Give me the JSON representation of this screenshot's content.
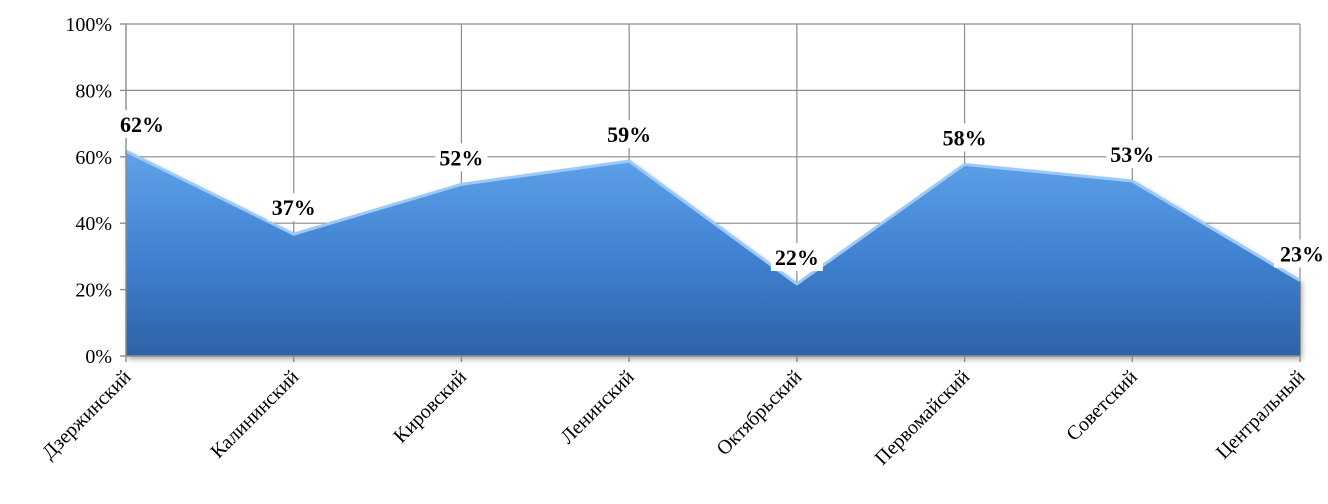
{
  "chart_data": {
    "type": "area",
    "categories": [
      "Дзержинский",
      "Калининский",
      "Кировский",
      "Ленинский",
      "Октябрьский",
      "Первомайский",
      "Советский",
      "Центральный"
    ],
    "values": [
      62,
      37,
      52,
      59,
      22,
      58,
      53,
      23
    ],
    "data_labels": [
      "62%",
      "37%",
      "52%",
      "59%",
      "22%",
      "58%",
      "53%",
      "23%"
    ],
    "y_ticks": [
      "0%",
      "20%",
      "40%",
      "60%",
      "80%",
      "100%"
    ],
    "y_tick_values": [
      0,
      20,
      40,
      60,
      80,
      100
    ],
    "ylim": [
      0,
      100
    ],
    "grid": true,
    "fill_color_top": "#5fa3ea",
    "fill_color_bottom": "#2d62a6",
    "grid_color": "#8c8c8c"
  }
}
